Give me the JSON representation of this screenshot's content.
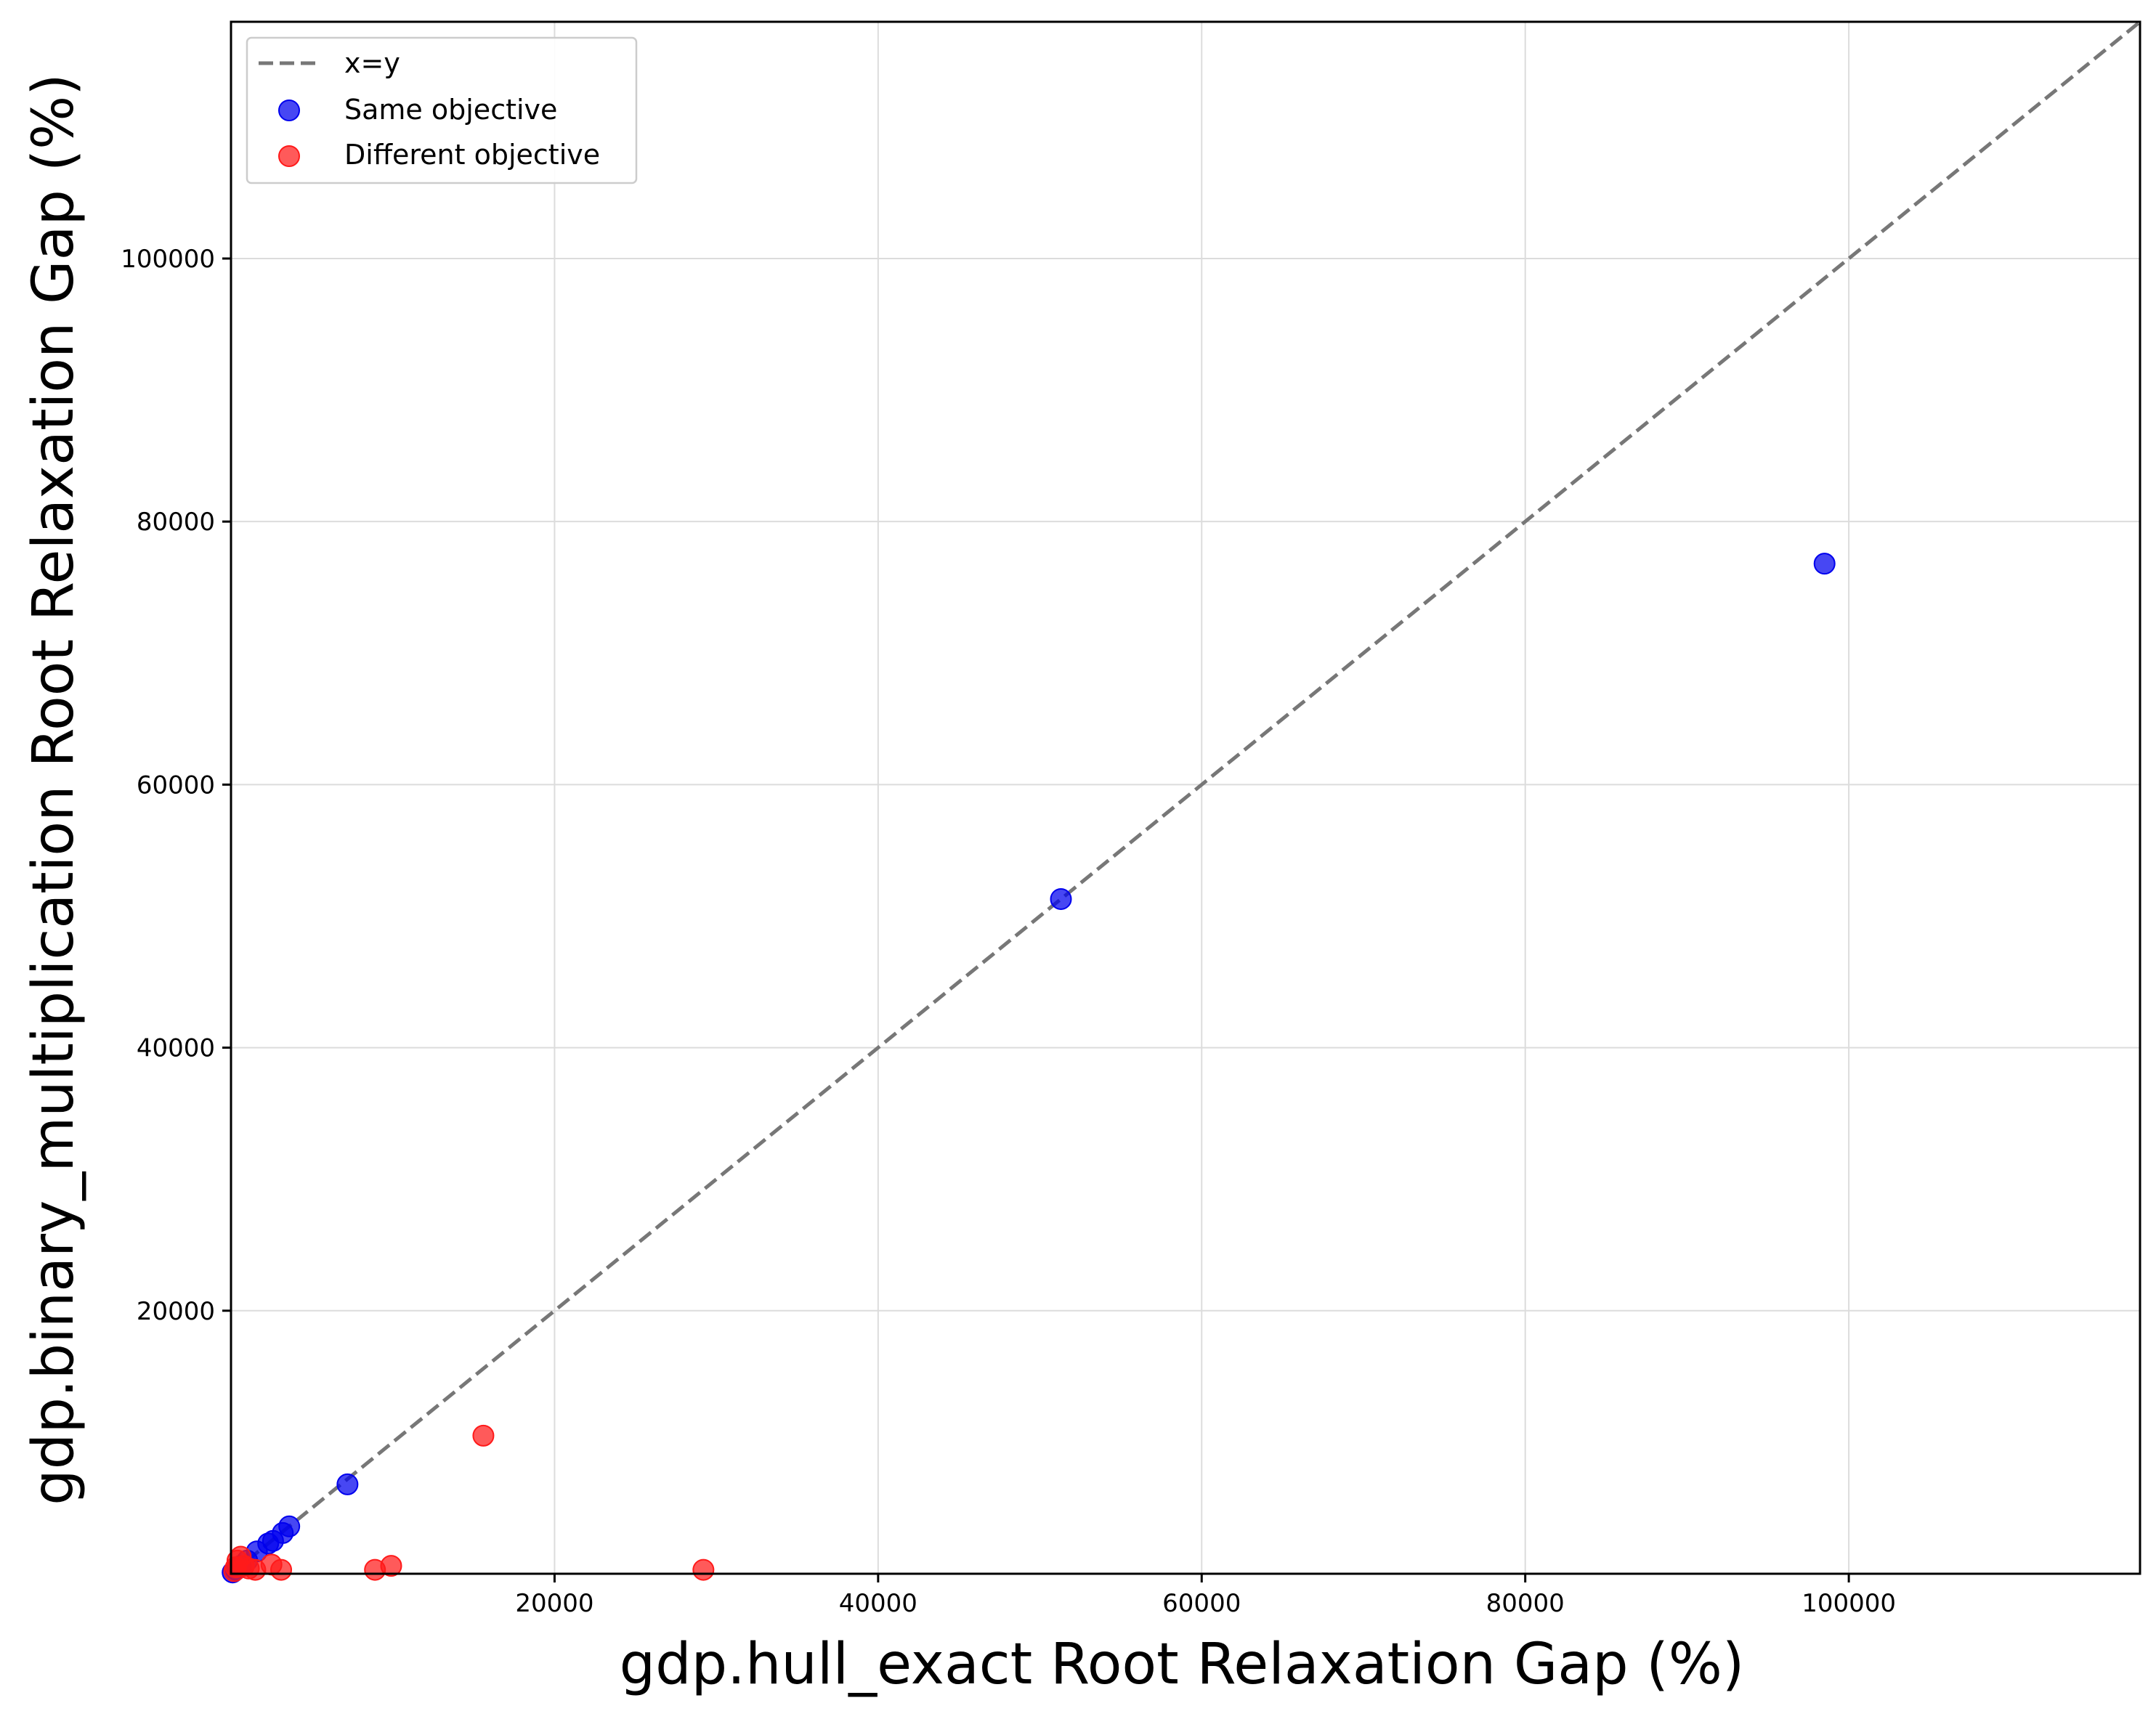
{
  "chart_data": {
    "type": "scatter",
    "title": "",
    "xlabel": "gdp.hull_exact Root Relaxation Gap (%)",
    "ylabel": "gdp.binary_multiplication Root Relaxation Gap (%)",
    "xlim": [
      0,
      118000
    ],
    "ylim": [
      0,
      118000
    ],
    "x_ticks": [
      20000,
      40000,
      60000,
      80000,
      100000
    ],
    "y_ticks": [
      20000,
      40000,
      60000,
      80000,
      100000
    ],
    "x_tick_labels": [
      "20000",
      "40000",
      "60000",
      "80000",
      "100000"
    ],
    "y_tick_labels": [
      "20000",
      "40000",
      "60000",
      "80000",
      "100000"
    ],
    "grid": true,
    "legend_position": "top-left",
    "reference_line": {
      "name": "x=y",
      "style": "dashed",
      "color": "#777777"
    },
    "series": [
      {
        "name": "Same objective",
        "color": "#0000ee",
        "points": [
          [
            98500,
            76800
          ],
          [
            51300,
            51300
          ],
          [
            7200,
            6800
          ],
          [
            3600,
            3600
          ],
          [
            3200,
            3100
          ],
          [
            2600,
            2500
          ],
          [
            2300,
            2300
          ],
          [
            1600,
            1700
          ],
          [
            1000,
            1000
          ],
          [
            600,
            600
          ],
          [
            300,
            300
          ],
          [
            100,
            100
          ]
        ]
      },
      {
        "name": "Different objective",
        "color": "#ff1a1a",
        "points": [
          [
            15600,
            10500
          ],
          [
            29200,
            300
          ],
          [
            9900,
            600
          ],
          [
            8900,
            300
          ],
          [
            3100,
            300
          ],
          [
            2500,
            700
          ],
          [
            1500,
            300
          ],
          [
            600,
            1300
          ],
          [
            400,
            1000
          ],
          [
            300,
            500
          ],
          [
            200,
            200
          ],
          [
            800,
            600
          ],
          [
            1100,
            400
          ]
        ]
      }
    ]
  }
}
